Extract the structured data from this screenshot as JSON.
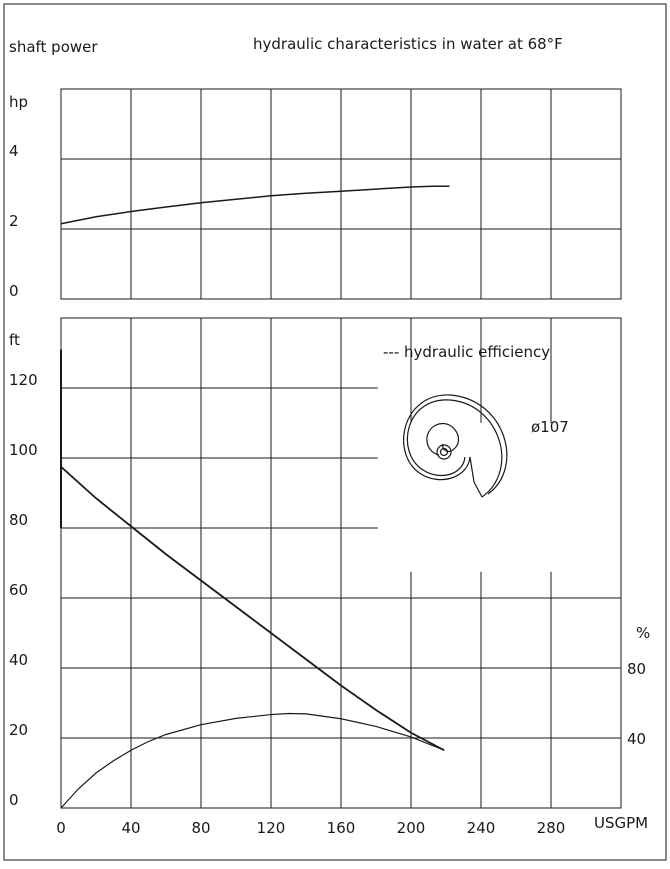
{
  "header": {
    "left_title": "shaft power",
    "right_title": "hydraulic characteristics in water at 68°F"
  },
  "chart_data": [
    {
      "type": "line",
      "title": "shaft power",
      "ylabel": "hp",
      "xlabel": "",
      "xlim": [
        0,
        320
      ],
      "ylim": [
        0,
        6
      ],
      "yticks": [
        0,
        2,
        4
      ],
      "grid": true,
      "series": [
        {
          "x": [
            0,
            20,
            40,
            60,
            80,
            100,
            120,
            140,
            160,
            180,
            200,
            212,
            222
          ],
          "values": [
            2.15,
            2.35,
            2.5,
            2.63,
            2.75,
            2.85,
            2.95,
            3.02,
            3.08,
            3.14,
            3.2,
            3.22,
            3.22
          ]
        }
      ]
    },
    {
      "type": "line",
      "title": "",
      "ylabel": "ft",
      "xlabel": "USGPM",
      "xlim": [
        0,
        320
      ],
      "ylim": [
        0,
        140
      ],
      "xticks": [
        0,
        40,
        80,
        120,
        160,
        200,
        240,
        280
      ],
      "yticks": [
        0,
        20,
        40,
        60,
        80,
        100,
        120
      ],
      "y2label": "%",
      "y2ticks": [
        40,
        80
      ],
      "grid": true,
      "legend": "--- hydraulic efficiency",
      "annotation": "ø107",
      "series": [
        {
          "x": [
            0,
            10,
            20,
            40,
            60,
            80,
            100,
            120,
            140,
            160,
            180,
            200,
            219
          ],
          "values": [
            97.5,
            93,
            88.5,
            80.5,
            72.5,
            65,
            57.5,
            50,
            42.5,
            35,
            28,
            21.5,
            16.5
          ]
        },
        {
          "x": [
            0,
            10,
            20,
            30,
            40,
            50,
            60,
            80,
            100,
            120,
            130,
            140,
            160,
            180,
            200,
            219
          ],
          "values": [
            0,
            5.5,
            10,
            13.5,
            16.5,
            19,
            21,
            23.8,
            25.6,
            26.7,
            27,
            26.9,
            25.5,
            23.3,
            20.3,
            16.5
          ]
        }
      ]
    }
  ]
}
